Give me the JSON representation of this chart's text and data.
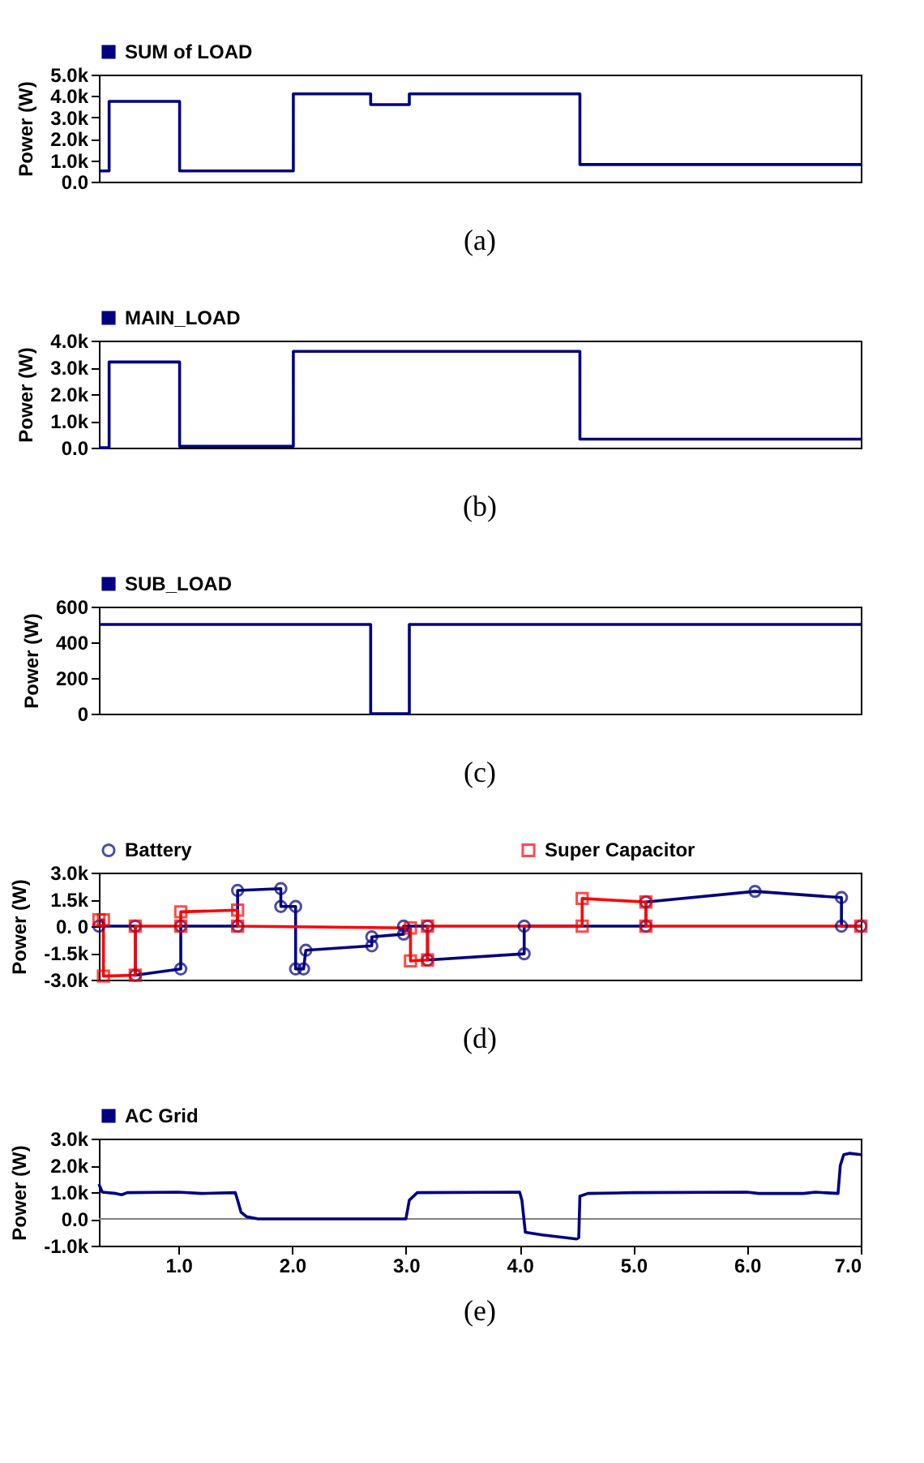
{
  "chart_data": [
    {
      "type": "step",
      "title": "(a)",
      "ylabel": "Power (W)",
      "legend": "top left",
      "tick_labels": "y",
      "xlim": [
        0.3,
        7.0
      ],
      "ylim": [
        0,
        5000
      ],
      "yticks": [
        {
          "value": 0,
          "label": "0.0"
        },
        {
          "value": 1000,
          "label": "1.0k"
        },
        {
          "value": 2000,
          "label": "2.0k"
        },
        {
          "value": 3000,
          "label": "3.0k"
        },
        {
          "value": 4000,
          "label": "4.0k"
        },
        {
          "value": 5000,
          "label": "5.0k"
        }
      ],
      "x": [
        0.3,
        0.39,
        1.01,
        2.01,
        2.69,
        3.03,
        4.53,
        7.0
      ],
      "series": [
        {
          "name": "SUM of LOAD",
          "color": "#000080",
          "values": [
            500,
            3750,
            500,
            4100,
            3600,
            4100,
            800,
            800
          ]
        }
      ]
    },
    {
      "type": "step",
      "title": "(b)",
      "ylabel": "Power (W)",
      "legend": "top left",
      "tick_labels": "y",
      "xlim": [
        0.3,
        7.0
      ],
      "ylim": [
        0,
        4000
      ],
      "yticks": [
        {
          "value": 0,
          "label": "0.0"
        },
        {
          "value": 1000,
          "label": "1.0k"
        },
        {
          "value": 2000,
          "label": "2.0k"
        },
        {
          "value": 3000,
          "label": "3.0k"
        },
        {
          "value": 4000,
          "label": "4.0k"
        }
      ],
      "x": [
        0.3,
        0.39,
        1.01,
        2.01,
        4.53,
        7.0
      ],
      "series": [
        {
          "name": "MAIN_LOAD",
          "color": "#000080",
          "values": [
            0,
            3200,
            50,
            3600,
            320,
            320
          ]
        }
      ]
    },
    {
      "type": "step",
      "title": "(c)",
      "ylabel": "Power (W)",
      "legend": "top left",
      "tick_labels": "y",
      "xlim": [
        0.3,
        7.0
      ],
      "ylim": [
        0,
        600
      ],
      "yticks": [
        0,
        200,
        400,
        600
      ],
      "x": [
        0.3,
        2.69,
        3.03,
        7.0
      ],
      "series": [
        {
          "name": "SUB_LOAD",
          "color": "#000080",
          "values": [
            500,
            0,
            500,
            500
          ]
        }
      ]
    },
    {
      "type": "line",
      "title": "(d)",
      "ylabel": "Power (W)",
      "legend": "top left",
      "tick_labels": "y",
      "xlim": [
        0.3,
        7.0
      ],
      "ylim": [
        -3000,
        3000
      ],
      "yticks": [
        {
          "value": -3000,
          "label": "-3.0k"
        },
        {
          "value": -1500,
          "label": "-1.5k"
        },
        {
          "value": 0,
          "label": "0. 0"
        },
        {
          "value": 1500,
          "label": "1.5k"
        },
        {
          "value": 3000,
          "label": "3.0k"
        }
      ],
      "series": [
        {
          "name": "Battery",
          "color": "#000080",
          "marker": "circle",
          "x": [
            0.3,
            0.62,
            0.62,
            1.02,
            1.02,
            1.52,
            1.52,
            1.9,
            1.9,
            2.03,
            2.03,
            2.1,
            2.12,
            2.7,
            2.7,
            2.98,
            2.98,
            3.19,
            3.19,
            4.04,
            4.04,
            5.11,
            5.11,
            6.07,
            6.83,
            6.83,
            7.0
          ],
          "values": [
            0,
            0,
            -2750,
            -2400,
            0,
            0,
            2000,
            2100,
            1100,
            1100,
            -2400,
            -2400,
            -1350,
            -1100,
            -600,
            -450,
            0,
            0,
            -1900,
            -1550,
            0,
            0,
            1350,
            1950,
            1600,
            0,
            0
          ]
        },
        {
          "name": "Super Capacitor",
          "color": "#ff0000",
          "marker": "square",
          "x": [
            0.3,
            0.34,
            0.34,
            0.62,
            0.62,
            1.02,
            1.02,
            1.52,
            1.52,
            3.04,
            3.04,
            3.19,
            3.19,
            4.55,
            4.55,
            5.11,
            5.11,
            7.0
          ],
          "values": [
            350,
            350,
            -2800,
            -2750,
            0,
            0,
            800,
            900,
            0,
            -100,
            -1950,
            -1900,
            0,
            0,
            1550,
            1350,
            0,
            0
          ]
        }
      ]
    },
    {
      "type": "line",
      "title": "(e)",
      "ylabel": "Power (W)",
      "legend": "top left",
      "xlim": [
        0.3,
        7.0
      ],
      "ylim": [
        -1000,
        3000
      ],
      "xticks": [
        {
          "value": 1,
          "label": "1.0"
        },
        {
          "value": 2,
          "label": "2.0"
        },
        {
          "value": 3,
          "label": "3.0"
        },
        {
          "value": 4,
          "label": "4.0"
        },
        {
          "value": 5,
          "label": "5.0"
        },
        {
          "value": 6,
          "label": "6.0"
        },
        {
          "value": 7,
          "label": "7.0"
        }
      ],
      "yticks": [
        {
          "value": -1000,
          "label": "-1.0k"
        },
        {
          "value": 0,
          "label": "0.0"
        },
        {
          "value": 1000,
          "label": "1.0k"
        },
        {
          "value": 2000,
          "label": "2.0k"
        },
        {
          "value": 3000,
          "label": "3.0k"
        }
      ],
      "ref_lines": [
        {
          "axis": "y",
          "value": 0,
          "color": "#808080"
        }
      ],
      "x": [
        0.3,
        0.33,
        0.45,
        0.5,
        0.55,
        1.0,
        1.2,
        1.5,
        1.52,
        1.55,
        1.6,
        1.7,
        3.0,
        3.03,
        3.1,
        4.0,
        4.02,
        4.05,
        4.2,
        4.5,
        4.52,
        4.53,
        4.6,
        5.0,
        6.0,
        6.1,
        6.5,
        6.6,
        6.8,
        6.82,
        6.85,
        6.9,
        7.0
      ],
      "series": [
        {
          "name": "AC Grid",
          "color": "#000080",
          "values": [
            1300,
            1000,
            950,
            900,
            980,
            1000,
            950,
            980,
            700,
            250,
            80,
            0,
            0,
            700,
            980,
            1000,
            700,
            -500,
            -600,
            -750,
            -700,
            850,
            950,
            980,
            1000,
            950,
            950,
            1000,
            950,
            2000,
            2400,
            2450,
            2400
          ]
        }
      ]
    }
  ]
}
